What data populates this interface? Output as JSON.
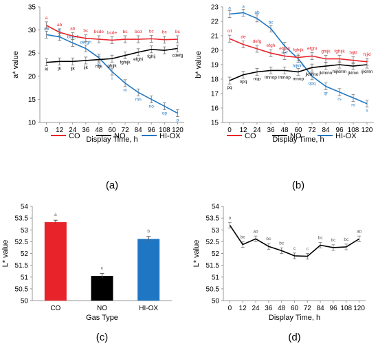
{
  "colors": {
    "CO": "#e8232a",
    "NO": "#000000",
    "HI-OX": "#1f77c4"
  },
  "chart_data": [
    {
      "panel_label": "(a)",
      "type": "line",
      "ylabel": "a* value",
      "xlabel": "Display Time, h",
      "ylim": [
        10,
        35
      ],
      "yticks": [
        "10",
        "15",
        "20",
        "25",
        "30",
        "35"
      ],
      "x": [
        "0",
        "12",
        "24",
        "36",
        "48",
        "60",
        "72",
        "84",
        "96",
        "108",
        "120"
      ],
      "legend": [
        "CO",
        "NO",
        "HI-OX"
      ],
      "legend_position": "bottom",
      "grid": false,
      "series": [
        {
          "name": "CO",
          "values": [
            31.0,
            29.5,
            28.7,
            28.2,
            28.0,
            27.8,
            28.0,
            28.0,
            28.1,
            27.9,
            28.0
          ],
          "labels": [
            "a",
            "ab",
            "ab",
            "bc",
            "bcde",
            "bcde",
            "bc",
            "bcd",
            "bc",
            "bc",
            "bc"
          ]
        },
        {
          "name": "NO",
          "values": [
            23.0,
            23.2,
            23.2,
            23.4,
            23.6,
            23.8,
            24.5,
            25.2,
            25.8,
            25.6,
            26.0
          ],
          "labels": [
            "kl",
            "jk",
            "ijk",
            "ijk",
            "hijk",
            "ghijk",
            "fghijk",
            "efghi",
            "fghij",
            "",
            "cdefg"
          ]
        },
        {
          "name": "HI-OX",
          "values": [
            29.0,
            28.5,
            27.2,
            26.0,
            24.0,
            21.0,
            18.5,
            16.5,
            15.0,
            13.5,
            12.0
          ],
          "labels": [
            "ab",
            "b",
            "bcdef",
            "defgh",
            "kl",
            "l",
            "m",
            "mn",
            "no",
            "op",
            "p"
          ]
        }
      ]
    },
    {
      "panel_label": "(b)",
      "type": "line",
      "ylabel": "b* value",
      "xlabel": "Display Time, h",
      "ylim": [
        15,
        23
      ],
      "yticks": [
        "15",
        "16",
        "17",
        "18",
        "19",
        "20",
        "21",
        "22",
        "23"
      ],
      "x": [
        "0",
        "12",
        "24",
        "36",
        "48",
        "60",
        "72",
        "84",
        "96",
        "108",
        "120"
      ],
      "legend": [
        "CO",
        "NO",
        "HI-OX"
      ],
      "legend_position": "bottom",
      "grid": false,
      "series": [
        {
          "name": "CO",
          "values": [
            20.8,
            20.4,
            20.1,
            19.8,
            19.6,
            19.5,
            19.6,
            19.4,
            19.4,
            19.3,
            19.2
          ],
          "labels": [
            "cd",
            "de",
            "defg",
            "efgh",
            "efghij",
            "fghijk",
            "efghi",
            "ghijk",
            "fghijk",
            "hijkl",
            "hijkl"
          ]
        },
        {
          "name": "NO",
          "values": [
            17.9,
            18.3,
            18.5,
            18.6,
            18.6,
            18.5,
            18.8,
            18.9,
            19.0,
            18.9,
            19.0
          ],
          "labels": [
            "pq",
            "opq",
            "nop",
            "lmnop",
            "lmnop",
            "mnop",
            "jklmno",
            "jklmno",
            "hijklmn",
            "jklmn",
            "ijklmn"
          ]
        },
        {
          "name": "HI-OX",
          "values": [
            22.5,
            22.6,
            22.2,
            21.5,
            20.3,
            19.4,
            18.2,
            17.5,
            17.1,
            16.7,
            16.3
          ],
          "labels": [
            "a",
            "a",
            "ab",
            "bc",
            "def",
            "hijklm",
            "opq",
            "qr",
            "rs",
            "rs",
            "s"
          ]
        }
      ]
    },
    {
      "panel_label": "(c)",
      "type": "bar",
      "ylabel": "L* value",
      "xlabel": "Gas Type",
      "ylim": [
        50,
        54
      ],
      "yticks": [
        "50",
        "50.5",
        "51",
        "51.5",
        "52",
        "52.5",
        "53",
        "53.5",
        "54"
      ],
      "categories": [
        "CO",
        "NO",
        "HI-OX"
      ],
      "values": [
        53.33,
        51.05,
        52.62
      ],
      "errors": [
        0.08,
        0.1,
        0.1
      ],
      "labels": [
        "a",
        "c",
        "b"
      ]
    },
    {
      "panel_label": "(d)",
      "type": "line",
      "ylabel": "L* value",
      "xlabel": "Display Time, h",
      "ylim": [
        50,
        54
      ],
      "yticks": [
        "50",
        "50.5",
        "51",
        "51.5",
        "52",
        "52.5",
        "53",
        "53.5",
        "54"
      ],
      "x": [
        "0",
        "12",
        "24",
        "36",
        "48",
        "60",
        "72",
        "84",
        "96",
        "108",
        "120"
      ],
      "series": [
        {
          "values": [
            53.2,
            52.38,
            52.62,
            52.3,
            52.12,
            51.9,
            51.88,
            52.35,
            52.25,
            52.28,
            52.62
          ],
          "labels": [
            "a",
            "bc",
            "ab",
            "bc",
            "bc",
            "c",
            "c",
            "bc",
            "bc",
            "bc",
            "ab"
          ]
        }
      ]
    }
  ]
}
